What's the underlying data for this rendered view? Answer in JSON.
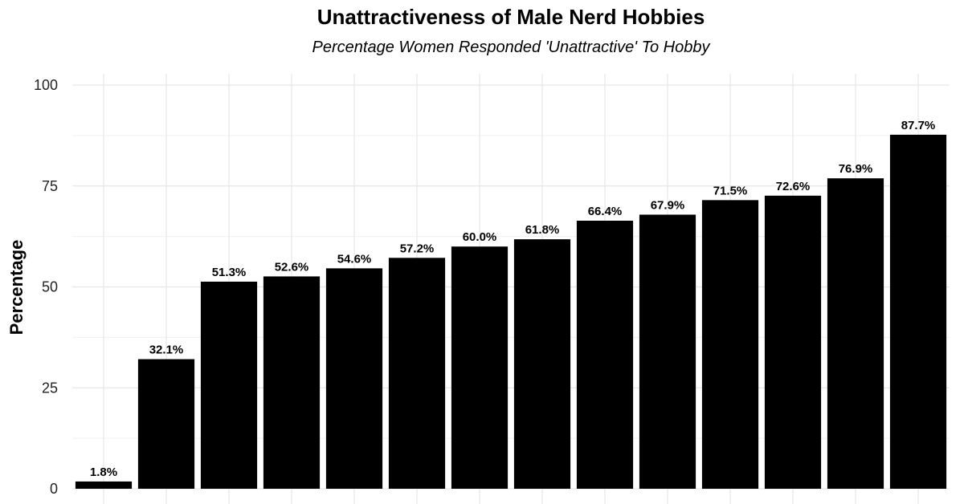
{
  "chart_data": {
    "type": "bar",
    "title": "Unattractiveness of Male Nerd Hobbies",
    "subtitle": "Percentage Women Responded 'Unattractive' To Hobby",
    "xlabel": "",
    "ylabel": "Percentage",
    "ylim": [
      0,
      100
    ],
    "yticks": [
      0,
      25,
      50,
      75,
      100
    ],
    "ytick_labels": [
      "0",
      "25",
      "50",
      "75",
      "100"
    ],
    "values": [
      1.8,
      32.1,
      51.3,
      52.6,
      54.6,
      57.2,
      60.0,
      61.8,
      66.4,
      67.9,
      71.5,
      72.6,
      76.9,
      87.7
    ],
    "value_labels": [
      "1.8%",
      "32.1%",
      "51.3%",
      "52.6%",
      "54.6%",
      "57.2%",
      "60.0%",
      "61.8%",
      "66.4%",
      "67.9%",
      "71.5%",
      "72.6%",
      "76.9%",
      "87.7%"
    ],
    "bar_color": "#000000",
    "grid": true,
    "legend": "none"
  }
}
